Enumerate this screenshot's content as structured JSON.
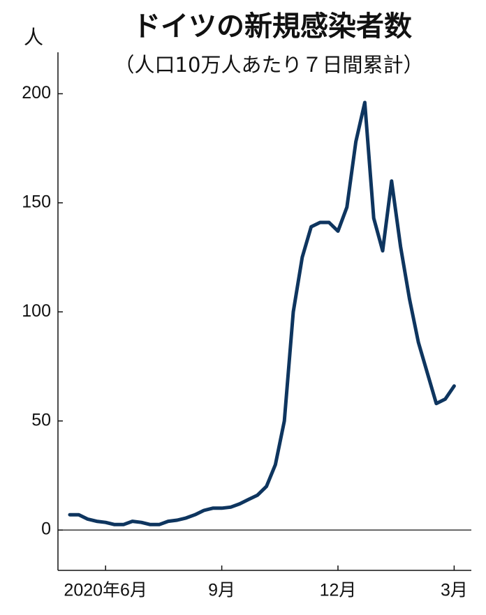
{
  "chart_data": {
    "type": "line",
    "title": "ドイツの新規感染者数",
    "subtitle": "（人口10万人あたり７日間累計）",
    "y_label": "人",
    "categories": [
      null,
      null,
      null,
      null,
      "2020年6月",
      null,
      null,
      null,
      null,
      null,
      null,
      null,
      null,
      null,
      null,
      null,
      null,
      "9月",
      null,
      null,
      null,
      null,
      null,
      null,
      null,
      null,
      null,
      null,
      null,
      null,
      "12月",
      null,
      null,
      null,
      null,
      null,
      null,
      null,
      null,
      null,
      null,
      null,
      null,
      "3月"
    ],
    "values": [
      7,
      7,
      5,
      4,
      3.5,
      2.5,
      2.5,
      4,
      3.5,
      2.5,
      2.5,
      4,
      4.5,
      5.5,
      7,
      9,
      10,
      10,
      10.5,
      12,
      14,
      16,
      20,
      30,
      50,
      100,
      125,
      139,
      141,
      141,
      137,
      148,
      178,
      196,
      143,
      128,
      160,
      130,
      106,
      86,
      72,
      58,
      60,
      66
    ],
    "color": "#0e355f",
    "ylim": [
      -18.5,
      219
    ],
    "yticks": [
      0,
      50,
      100,
      150,
      200
    ],
    "zero_line": true
  }
}
